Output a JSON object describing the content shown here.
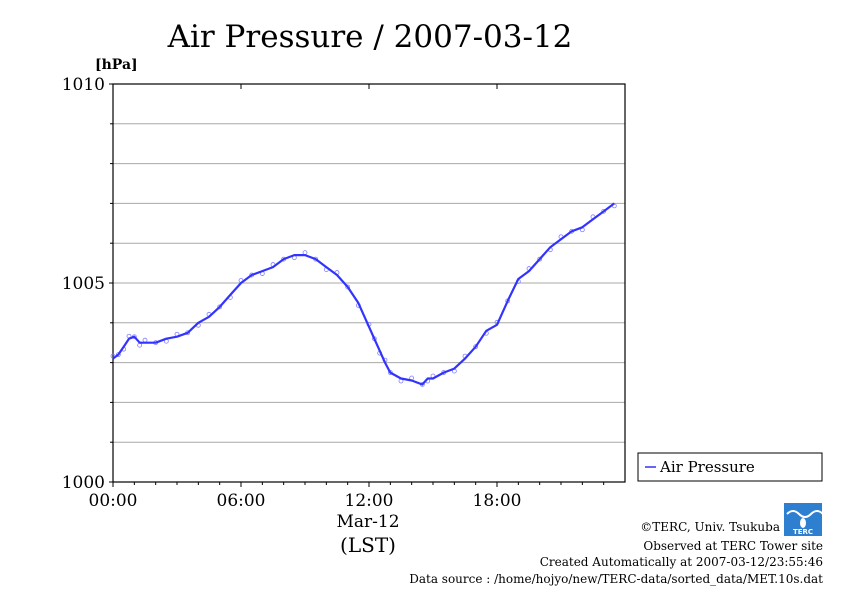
{
  "chart_data": {
    "type": "line",
    "title": "Air Pressure / 2007-03-12",
    "ylabel": "[hPa]",
    "xlabel": "(LST)",
    "date_label": "Mar-12",
    "ylim": [
      1000,
      1010
    ],
    "xlim_hours": [
      0,
      24
    ],
    "y_ticks": [
      "1000",
      "1005",
      "1010"
    ],
    "x_ticks": [
      "00:00",
      "06:00",
      "12:00",
      "18:00"
    ],
    "y_grid_step": 1,
    "grid": "horizontal",
    "legend_position": "right",
    "series": [
      {
        "name": "Air Pressure",
        "color": "#3333ff",
        "marker_color": "#7f7fff",
        "x_hours": [
          0.0,
          0.25,
          0.5,
          0.75,
          1.0,
          1.25,
          1.5,
          2.0,
          2.5,
          3.0,
          3.5,
          4.0,
          4.5,
          5.0,
          5.5,
          6.0,
          6.5,
          7.0,
          7.5,
          8.0,
          8.5,
          9.0,
          9.5,
          10.0,
          10.5,
          11.0,
          11.5,
          12.0,
          12.25,
          12.5,
          12.75,
          13.0,
          13.5,
          14.0,
          14.5,
          14.75,
          15.0,
          15.5,
          16.0,
          16.5,
          17.0,
          17.5,
          18.0,
          18.5,
          19.0,
          19.5,
          20.0,
          20.5,
          21.0,
          21.5,
          22.0,
          22.5,
          23.0,
          23.5
        ],
        "values": [
          1003.1,
          1003.2,
          1003.4,
          1003.6,
          1003.65,
          1003.5,
          1003.5,
          1003.5,
          1003.6,
          1003.65,
          1003.75,
          1004.0,
          1004.15,
          1004.4,
          1004.7,
          1005.0,
          1005.2,
          1005.3,
          1005.4,
          1005.6,
          1005.7,
          1005.7,
          1005.6,
          1005.4,
          1005.2,
          1004.9,
          1004.5,
          1003.9,
          1003.6,
          1003.3,
          1003.0,
          1002.75,
          1002.6,
          1002.55,
          1002.45,
          1002.6,
          1002.6,
          1002.75,
          1002.85,
          1003.1,
          1003.4,
          1003.8,
          1003.95,
          1004.55,
          1005.1,
          1005.3,
          1005.6,
          1005.9,
          1006.1,
          1006.3,
          1006.4,
          1006.6,
          1006.8,
          1007.0
        ]
      }
    ]
  },
  "footer": {
    "logo_text": "TERC",
    "copyright": "©TERC, Univ. Tsukuba",
    "observed": "Observed at TERC Tower site",
    "created": "Created Automatically at 2007-03-12/23:55:46",
    "source": "Data source : /home/hojyo/new/TERC-data/sorted_data/MET.10s.dat"
  }
}
